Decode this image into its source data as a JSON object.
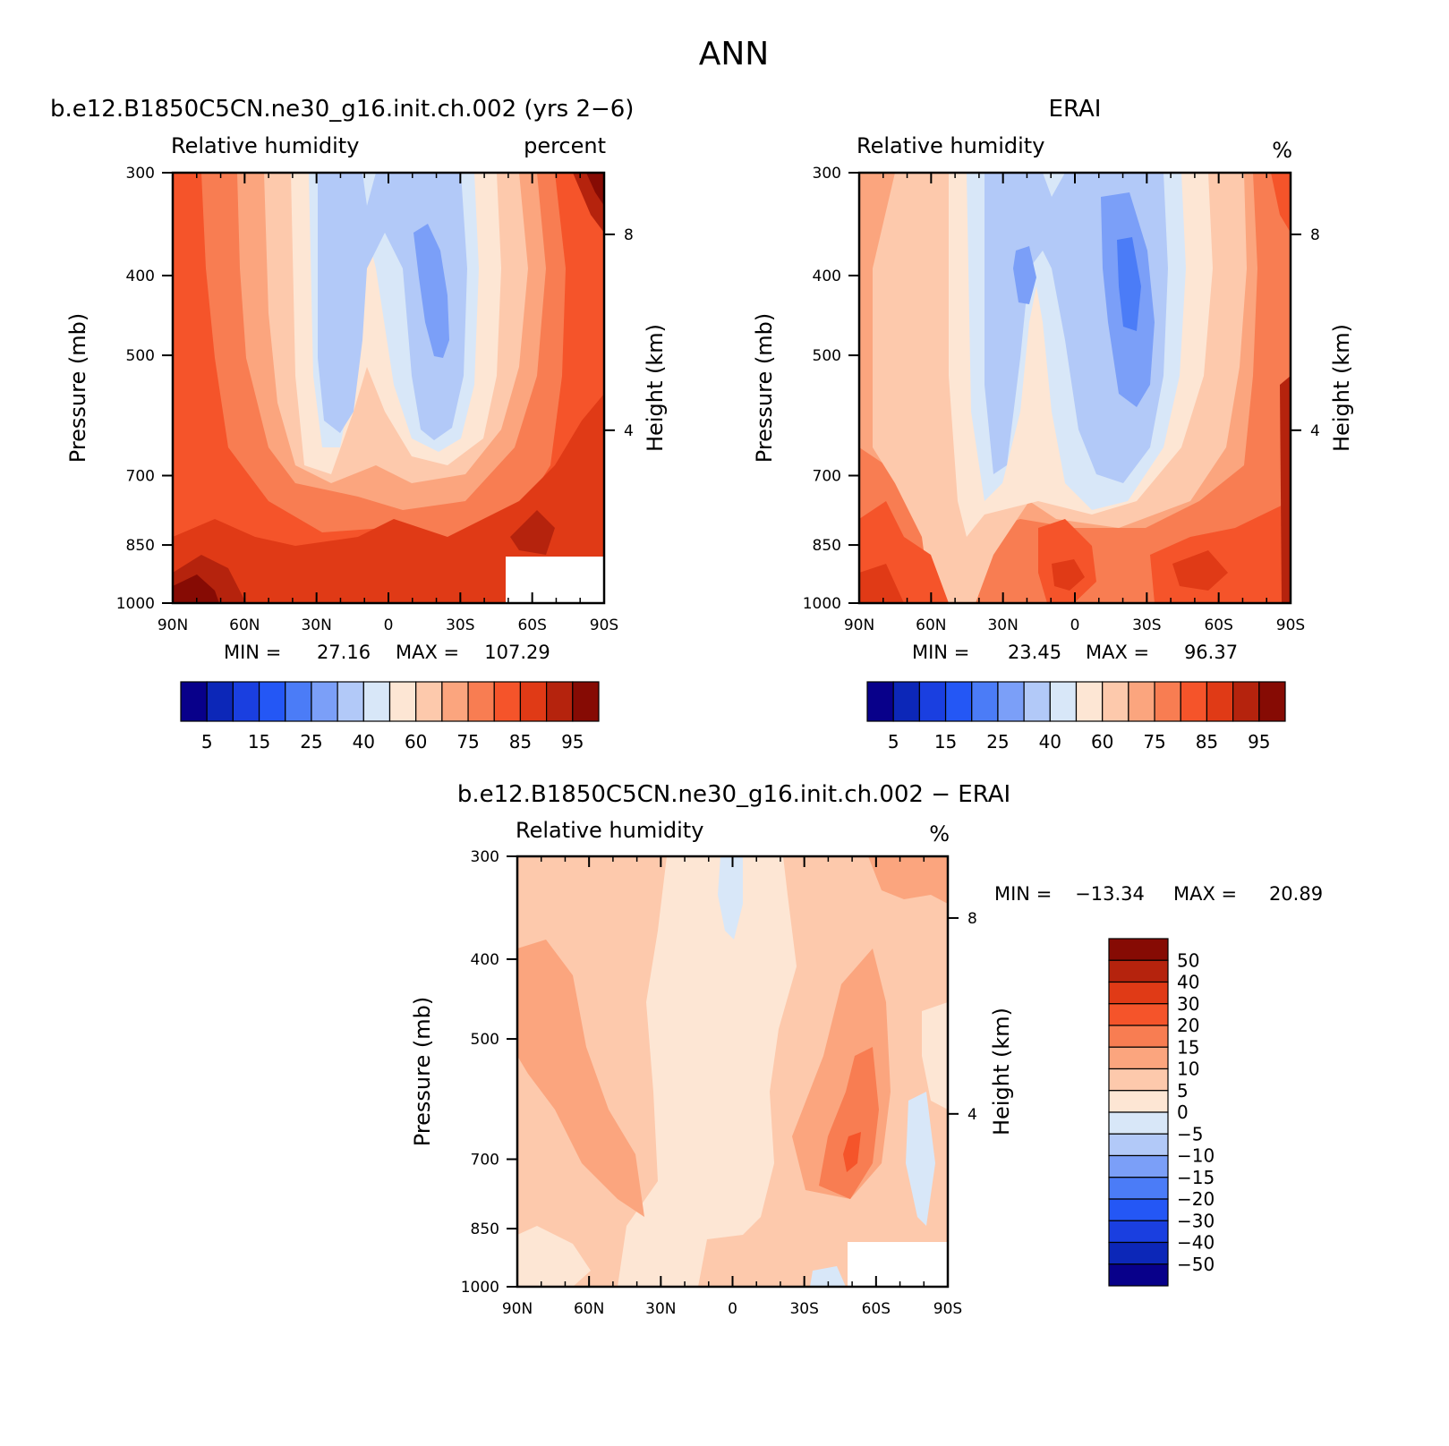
{
  "figure": {
    "title": "ANN"
  },
  "chart_data": [
    {
      "type": "heatmap",
      "case_title": "b.e12.B1850C5CN.ne30_g16.init.ch.002 (yrs 2−6)",
      "left_string": "Relative humidity",
      "right_string": "percent",
      "xlabel": "",
      "ylabel": "Pressure (mb)",
      "ylabel_right": "Height (km)",
      "x_ticks": [
        "90N",
        "60N",
        "30N",
        "0",
        "30S",
        "60S",
        "90S"
      ],
      "y_ticks": [
        "300",
        "400",
        "500",
        "700",
        "850",
        "1000"
      ],
      "y_right_ticks": [
        "8",
        "4"
      ],
      "min_label": "MIN =",
      "min_value": "27.16",
      "max_label": "MAX =",
      "max_value": "107.29",
      "colorbar": {
        "orientation": "horizontal",
        "levels": [
          5,
          10,
          15,
          20,
          25,
          30,
          40,
          50,
          60,
          70,
          75,
          80,
          85,
          90,
          95
        ],
        "labels": [
          "5",
          "15",
          "25",
          "40",
          "60",
          "75",
          "85",
          "95"
        ],
        "colors": [
          "#08008a",
          "#0c27b8",
          "#1a3fe0",
          "#2457f5",
          "#4b7cf7",
          "#7b9ff8",
          "#b2c9f8",
          "#d8e7f8",
          "#fde6d4",
          "#fdc9ac",
          "#fba57e",
          "#f87d52",
          "#f5542a",
          "#e03a16",
          "#b5230d",
          "#860b04"
        ]
      },
      "ylim": [
        1000,
        300
      ],
      "xlim": [
        "90N",
        "90S"
      ],
      "fill_colors": [
        "#f5542a",
        "#f87d52",
        "#fba57e",
        "#fdc9ac",
        "#fde6d4",
        "#d8e7f8",
        "#b2c9f8",
        "#7b9ff8",
        "#e03a16",
        "#b5230d",
        "#860b04"
      ]
    },
    {
      "type": "heatmap",
      "case_title": "ERAI",
      "left_string": "Relative humidity",
      "right_string": "%",
      "xlabel": "",
      "ylabel": "Pressure (mb)",
      "ylabel_right": "Height (km)",
      "x_ticks": [
        "90N",
        "60N",
        "30N",
        "0",
        "30S",
        "60S",
        "90S"
      ],
      "y_ticks": [
        "300",
        "400",
        "500",
        "700",
        "850",
        "1000"
      ],
      "y_right_ticks": [
        "8",
        "4"
      ],
      "min_label": "MIN =",
      "min_value": "23.45",
      "max_label": "MAX =",
      "max_value": "96.37",
      "colorbar": {
        "orientation": "horizontal",
        "levels": [
          5,
          10,
          15,
          20,
          25,
          30,
          40,
          50,
          60,
          70,
          75,
          80,
          85,
          90,
          95
        ],
        "labels": [
          "5",
          "15",
          "25",
          "40",
          "60",
          "75",
          "85",
          "95"
        ],
        "colors": [
          "#08008a",
          "#0c27b8",
          "#1a3fe0",
          "#2457f5",
          "#4b7cf7",
          "#7b9ff8",
          "#b2c9f8",
          "#d8e7f8",
          "#fde6d4",
          "#fdc9ac",
          "#fba57e",
          "#f87d52",
          "#f5542a",
          "#e03a16",
          "#b5230d",
          "#860b04"
        ]
      },
      "ylim": [
        1000,
        300
      ],
      "xlim": [
        "90N",
        "90S"
      ]
    },
    {
      "type": "heatmap",
      "case_title": "b.e12.B1850C5CN.ne30_g16.init.ch.002 − ERAI",
      "left_string": "Relative humidity",
      "right_string": "%",
      "xlabel": "",
      "ylabel": "Pressure (mb)",
      "ylabel_right": "Height (km)",
      "x_ticks": [
        "90N",
        "60N",
        "30N",
        "0",
        "30S",
        "60S",
        "90S"
      ],
      "y_ticks": [
        "300",
        "400",
        "500",
        "700",
        "850",
        "1000"
      ],
      "y_right_ticks": [
        "8",
        "4"
      ],
      "min_label": "MIN =",
      "min_value": "−13.34",
      "max_label": "MAX =",
      "max_value": "20.89",
      "colorbar": {
        "orientation": "vertical",
        "levels": [
          50,
          40,
          30,
          20,
          15,
          10,
          5,
          0,
          -5,
          -10,
          -15,
          -20,
          -30,
          -40,
          -50
        ],
        "labels": [
          "50",
          "40",
          "30",
          "20",
          "15",
          "10",
          "5",
          "0",
          "−5",
          "−10",
          "−15",
          "−20",
          "−30",
          "−40",
          "−50"
        ],
        "colors": [
          "#860b04",
          "#b5230d",
          "#e03a16",
          "#f5542a",
          "#f87d52",
          "#fba57e",
          "#fdc9ac",
          "#fde6d4",
          "#d8e7f8",
          "#b2c9f8",
          "#7b9ff8",
          "#4b7cf7",
          "#2457f5",
          "#1a3fe0",
          "#0c27b8",
          "#08008a"
        ]
      },
      "ylim": [
        1000,
        300
      ],
      "xlim": [
        "90N",
        "90S"
      ]
    }
  ]
}
